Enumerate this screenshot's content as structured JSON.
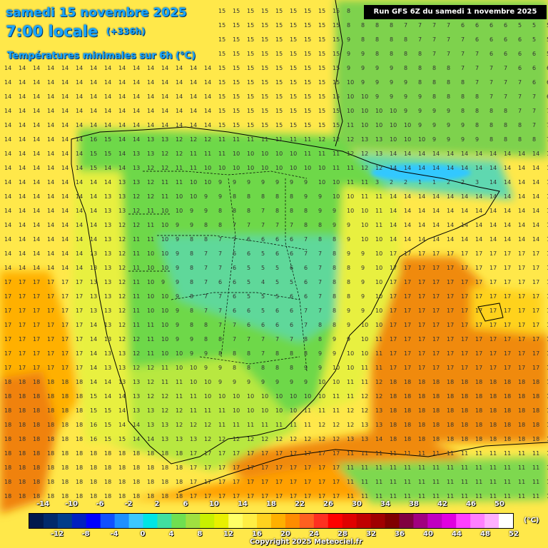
{
  "header": {
    "date": "samedi 15 novembre 2025",
    "time": "7:00 locale",
    "lead": "(+336h)",
    "subtitle": "Températures minimales sur 6h (°C)",
    "run_info": "Run GFS 6Z du samedi 1 novembre 2025"
  },
  "legend": {
    "unit": "(°C)",
    "top_labels": [
      "-14",
      "-10",
      "-6",
      "-2",
      "2",
      "6",
      "10",
      "14",
      "18",
      "22",
      "26",
      "30",
      "34",
      "38",
      "42",
      "46",
      "50"
    ],
    "bottom_labels": [
      "-12",
      "-8",
      "-4",
      "0",
      "4",
      "8",
      "12",
      "16",
      "20",
      "24",
      "28",
      "32",
      "36",
      "40",
      "44",
      "48",
      "52"
    ],
    "colors": [
      "#001a4d",
      "#002a6b",
      "#003d8a",
      "#0020c0",
      "#0000ff",
      "#1050ff",
      "#1e90ff",
      "#3cc8ff",
      "#00e5e5",
      "#40e0a0",
      "#70e050",
      "#a0e040",
      "#c8f000",
      "#e8f000",
      "#ffff66",
      "#ffee44",
      "#ffd21e",
      "#ffb000",
      "#ff8c00",
      "#ff6020",
      "#ff3020",
      "#ff0000",
      "#e00000",
      "#c00000",
      "#a00000",
      "#800000",
      "#800040",
      "#a00080",
      "#c000c0",
      "#e000e0",
      "#ff40ff",
      "#ff80ff",
      "#ffb0ff",
      "#ffffff"
    ]
  },
  "copyright": "Copyright 2025 Meteociel.fr",
  "map_colors": {
    "sea_cool": "#ffe84a",
    "sea_warm": "#ffa000",
    "sea_hot": "#f07a10",
    "land_green": "#6ed84a",
    "land_light": "#9ee048",
    "land_yellow": "#d8ec3a",
    "cold_blue": "#5ee8c0",
    "alps_cyan": "#32c8ff"
  }
}
